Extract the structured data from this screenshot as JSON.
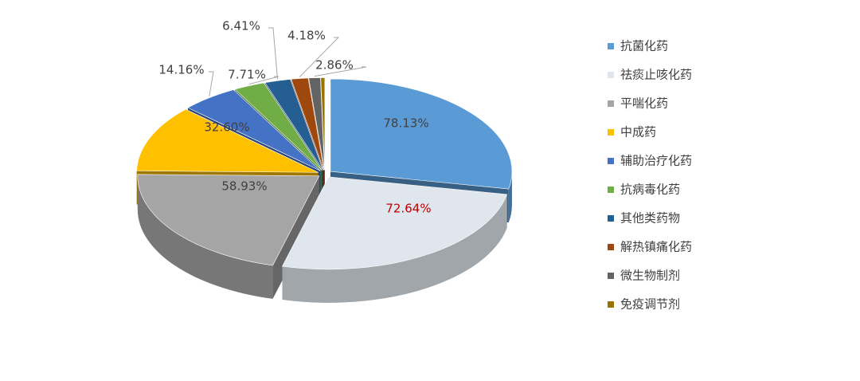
{
  "chart_data": {
    "type": "pie3d",
    "categories": [
      "抗菌化药",
      "祛痰止咳化药",
      "平喘化药",
      "中成药",
      "辅助治疗化药",
      "抗病毒化药",
      "其他类药物",
      "解热镇痛化药",
      "微生物制剂",
      "免疫调节剂"
    ],
    "values": [
      78.13,
      72.64,
      58.93,
      32.6,
      14.16,
      7.71,
      6.41,
      4.18,
      2.86,
      1
    ],
    "value_labels": [
      "78.13%",
      "72.64%",
      "58.93%",
      "32.60%",
      "14.16%",
      "7.71%",
      "6.41%",
      "4.18%",
      "2.86%",
      null
    ],
    "colors": [
      "#5b9bd5",
      "#dfe6ee",
      "#a5a5a5",
      "#ffc000",
      "#4472c4",
      "#70ad47",
      "#255e91",
      "#9e480e",
      "#636363",
      "#997300"
    ],
    "value_label_colors": [
      "#404040",
      "#c00000",
      "#404040",
      "#404040",
      "#404040",
      "#404040",
      "#404040",
      "#404040",
      "#404040",
      "#404040"
    ],
    "legend": "right"
  }
}
